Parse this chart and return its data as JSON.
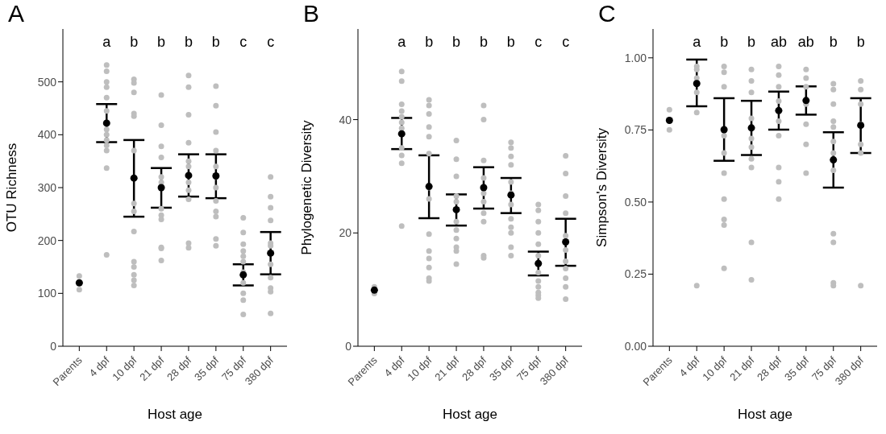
{
  "chart_data": [
    {
      "type": "scatter",
      "title": "A",
      "xlabel": "Host age",
      "ylabel": "OTU Richness",
      "categories": [
        "Parents",
        "4 dpf",
        "10 dpf",
        "21 dpf",
        "28 dpf",
        "35 dpf",
        "75 dpf",
        "380 dpf"
      ],
      "ylim": [
        0,
        600
      ],
      "yticks": [
        0,
        100,
        200,
        300,
        400,
        500
      ],
      "series": [
        {
          "color": "#bebebe",
          "x": [
            "Parents",
            "Parents",
            "4 dpf",
            "4 dpf",
            "4 dpf",
            "4 dpf",
            "4 dpf",
            "4 dpf",
            "4 dpf",
            "4 dpf",
            "4 dpf",
            "4 dpf",
            "4 dpf",
            "4 dpf",
            "4 dpf",
            "4 dpf",
            "10 dpf",
            "10 dpf",
            "10 dpf",
            "10 dpf",
            "10 dpf",
            "10 dpf",
            "10 dpf",
            "10 dpf",
            "10 dpf",
            "10 dpf",
            "10 dpf",
            "10 dpf",
            "10 dpf",
            "10 dpf",
            "21 dpf",
            "21 dpf",
            "21 dpf",
            "21 dpf",
            "21 dpf",
            "21 dpf",
            "21 dpf",
            "21 dpf",
            "21 dpf",
            "21 dpf",
            "21 dpf",
            "21 dpf",
            "28 dpf",
            "28 dpf",
            "28 dpf",
            "28 dpf",
            "28 dpf",
            "28 dpf",
            "28 dpf",
            "28 dpf",
            "28 dpf",
            "28 dpf",
            "28 dpf",
            "35 dpf",
            "35 dpf",
            "35 dpf",
            "35 dpf",
            "35 dpf",
            "35 dpf",
            "35 dpf",
            "35 dpf",
            "35 dpf",
            "35 dpf",
            "35 dpf",
            "35 dpf",
            "75 dpf",
            "75 dpf",
            "75 dpf",
            "75 dpf",
            "75 dpf",
            "75 dpf",
            "75 dpf",
            "75 dpf",
            "75 dpf",
            "75 dpf",
            "75 dpf",
            "380 dpf",
            "380 dpf",
            "380 dpf",
            "380 dpf",
            "380 dpf",
            "380 dpf",
            "380 dpf",
            "380 dpf",
            "380 dpf",
            "380 dpf",
            "380 dpf"
          ],
          "values": [
            133,
            107,
            532,
            520,
            500,
            490,
            470,
            445,
            420,
            410,
            400,
            390,
            380,
            370,
            337,
            173,
            505,
            498,
            480,
            440,
            435,
            370,
            270,
            255,
            217,
            160,
            150,
            135,
            125,
            115,
            475,
            418,
            378,
            357,
            320,
            310,
            260,
            248,
            240,
            187,
            185,
            162,
            512,
            490,
            438,
            385,
            350,
            340,
            310,
            295,
            278,
            195,
            186,
            492,
            455,
            405,
            370,
            340,
            320,
            300,
            275,
            255,
            245,
            203,
            190,
            243,
            215,
            193,
            180,
            170,
            160,
            140,
            120,
            100,
            87,
            60,
            320,
            283,
            262,
            238,
            195,
            190,
            155,
            130,
            110,
            103,
            62
          ]
        },
        {
          "color": "#000000",
          "values": [
            120,
            422,
            318,
            300,
            323,
            322,
            135,
            176
          ],
          "errors": [
            null,
            [
              386,
              458
            ],
            [
              245,
              390
            ],
            [
              262,
              337
            ],
            [
              283,
              363
            ],
            [
              280,
              363
            ],
            [
              115,
              155
            ],
            [
              136,
              216
            ]
          ]
        }
      ],
      "annotations": [
        "a",
        "b",
        "b",
        "b",
        "b",
        "c",
        "c"
      ]
    },
    {
      "type": "scatter",
      "title": "B",
      "xlabel": "Host age",
      "ylabel": "Phylogenetic Diversity",
      "categories": [
        "Parents",
        "4 dpf",
        "10 dpf",
        "21 dpf",
        "28 dpf",
        "35 dpf",
        "75 dpf",
        "380 dpf"
      ],
      "ylim": [
        0,
        56
      ],
      "yticks": [
        0,
        20,
        40
      ],
      "series": [
        {
          "color": "#bebebe",
          "x": [
            "Parents",
            "Parents",
            "4 dpf",
            "4 dpf",
            "4 dpf",
            "4 dpf",
            "4 dpf",
            "4 dpf",
            "4 dpf",
            "4 dpf",
            "4 dpf",
            "4 dpf",
            "4 dpf",
            "10 dpf",
            "10 dpf",
            "10 dpf",
            "10 dpf",
            "10 dpf",
            "10 dpf",
            "10 dpf",
            "10 dpf",
            "10 dpf",
            "10 dpf",
            "10 dpf",
            "10 dpf",
            "10 dpf",
            "10 dpf",
            "21 dpf",
            "21 dpf",
            "21 dpf",
            "21 dpf",
            "21 dpf",
            "21 dpf",
            "21 dpf",
            "21 dpf",
            "21 dpf",
            "21 dpf",
            "21 dpf",
            "28 dpf",
            "28 dpf",
            "28 dpf",
            "28 dpf",
            "28 dpf",
            "28 dpf",
            "28 dpf",
            "28 dpf",
            "28 dpf",
            "28 dpf",
            "35 dpf",
            "35 dpf",
            "35 dpf",
            "35 dpf",
            "35 dpf",
            "35 dpf",
            "35 dpf",
            "35 dpf",
            "35 dpf",
            "35 dpf",
            "35 dpf",
            "35 dpf",
            "75 dpf",
            "75 dpf",
            "75 dpf",
            "75 dpf",
            "75 dpf",
            "75 dpf",
            "75 dpf",
            "75 dpf",
            "75 dpf",
            "75 dpf",
            "75 dpf",
            "75 dpf",
            "380 dpf",
            "380 dpf",
            "380 dpf",
            "380 dpf",
            "380 dpf",
            "380 dpf",
            "380 dpf",
            "380 dpf",
            "380 dpf",
            "380 dpf",
            "380 dpf"
          ],
          "values": [
            10.5,
            9.3,
            48.5,
            46.8,
            42.7,
            41.5,
            40.5,
            39.5,
            38.5,
            35,
            33.7,
            32.3,
            21.2,
            43.5,
            42.5,
            41,
            38.7,
            37,
            34,
            28,
            26,
            19.8,
            16.8,
            15.5,
            13.9,
            12,
            11.5,
            36.3,
            33,
            30,
            26.5,
            25.5,
            22,
            20.5,
            19,
            17.5,
            16.8,
            14.5,
            42.5,
            40,
            32.8,
            29.7,
            27,
            25.5,
            23.5,
            22,
            16,
            15.6,
            36,
            35,
            33.5,
            32,
            29,
            27,
            25,
            22.5,
            21,
            20,
            17.5,
            16,
            25,
            24,
            22,
            20,
            18,
            16,
            13,
            11.5,
            10.5,
            9.5,
            9,
            8.5,
            33.6,
            30.5,
            26.5,
            23.5,
            19.5,
            17,
            15,
            13.7,
            12,
            10.5,
            8.3
          ]
        },
        {
          "color": "#000000",
          "values": [
            9.9,
            37.5,
            28.2,
            24.1,
            28,
            26.7,
            14.6,
            18.4
          ],
          "errors": [
            null,
            [
              34.8,
              40.3
            ],
            [
              22.6,
              33.7
            ],
            [
              21.3,
              26.8
            ],
            [
              24.3,
              31.6
            ],
            [
              23.5,
              29.7
            ],
            [
              12.5,
              16.7
            ],
            [
              14.2,
              22.5
            ]
          ]
        }
      ],
      "annotations": [
        "a",
        "b",
        "b",
        "b",
        "b",
        "c",
        "c"
      ]
    },
    {
      "type": "scatter",
      "title": "C",
      "xlabel": "Host age",
      "ylabel": "Simpson's Diversity",
      "categories": [
        "Parents",
        "4 dpf",
        "10 dpf",
        "21 dpf",
        "28 dpf",
        "35 dpf",
        "75 dpf",
        "380 dpf"
      ],
      "ylim": [
        0,
        1.1
      ],
      "yticks": [
        {
          "value": 0,
          "label": "0.00"
        },
        {
          "value": 0.25,
          "label": "0.25"
        },
        {
          "value": 0.5,
          "label": "0.50"
        },
        {
          "value": 0.75,
          "label": "0.75"
        },
        {
          "value": 1,
          "label": "1.00"
        }
      ],
      "series": [
        {
          "color": "#bebebe",
          "x": [
            "Parents",
            "Parents",
            "4 dpf",
            "4 dpf",
            "4 dpf",
            "4 dpf",
            "4 dpf",
            "4 dpf",
            "10 dpf",
            "10 dpf",
            "10 dpf",
            "10 dpf",
            "10 dpf",
            "10 dpf",
            "10 dpf",
            "10 dpf",
            "10 dpf",
            "10 dpf",
            "21 dpf",
            "21 dpf",
            "21 dpf",
            "21 dpf",
            "21 dpf",
            "21 dpf",
            "21 dpf",
            "21 dpf",
            "21 dpf",
            "21 dpf",
            "28 dpf",
            "28 dpf",
            "28 dpf",
            "28 dpf",
            "28 dpf",
            "28 dpf",
            "28 dpf",
            "28 dpf",
            "28 dpf",
            "35 dpf",
            "35 dpf",
            "35 dpf",
            "35 dpf",
            "35 dpf",
            "35 dpf",
            "35 dpf",
            "75 dpf",
            "75 dpf",
            "75 dpf",
            "75 dpf",
            "75 dpf",
            "75 dpf",
            "75 dpf",
            "75 dpf",
            "75 dpf",
            "75 dpf",
            "75 dpf",
            "75 dpf",
            "75 dpf",
            "380 dpf",
            "380 dpf",
            "380 dpf",
            "380 dpf",
            "380 dpf",
            "380 dpf",
            "380 dpf"
          ],
          "values": [
            0.82,
            0.75,
            0.97,
            0.96,
            0.93,
            0.88,
            0.81,
            0.21,
            0.97,
            0.95,
            0.9,
            0.73,
            0.67,
            0.6,
            0.51,
            0.44,
            0.42,
            0.27,
            0.96,
            0.92,
            0.88,
            0.79,
            0.72,
            0.69,
            0.65,
            0.62,
            0.36,
            0.23,
            0.97,
            0.94,
            0.9,
            0.85,
            0.78,
            0.73,
            0.62,
            0.57,
            0.51,
            0.96,
            0.93,
            0.9,
            0.84,
            0.77,
            0.7,
            0.6,
            0.91,
            0.89,
            0.84,
            0.78,
            0.76,
            0.71,
            0.67,
            0.65,
            0.61,
            0.39,
            0.36,
            0.22,
            0.21,
            0.92,
            0.89,
            0.84,
            0.77,
            0.7,
            0.67,
            0.21
          ]
        },
        {
          "color": "#000000",
          "values": [
            0.783,
            0.911,
            0.751,
            0.757,
            0.817,
            0.852,
            0.646,
            0.766
          ],
          "errors": [
            null,
            [
              0.832,
              0.994
            ],
            [
              0.643,
              0.86
            ],
            [
              0.663,
              0.851
            ],
            [
              0.751,
              0.883
            ],
            [
              0.803,
              0.901
            ],
            [
              0.55,
              0.742
            ],
            [
              0.67,
              0.86
            ]
          ]
        }
      ],
      "annotations": [
        "a",
        "b",
        "b",
        "ab",
        "ab",
        "b",
        "b"
      ]
    }
  ]
}
